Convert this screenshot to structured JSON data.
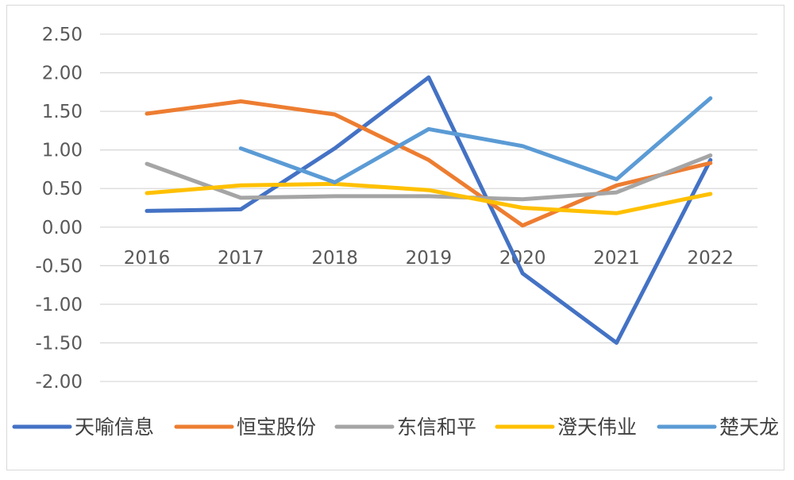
{
  "chart_data": {
    "type": "line",
    "categories": [
      "2016",
      "2017",
      "2018",
      "2019",
      "2020",
      "2021",
      "2022"
    ],
    "ylim": [
      -2.0,
      2.5
    ],
    "yticks": [
      "2.50",
      "2.00",
      "1.50",
      "1.00",
      "0.50",
      "0.00",
      "-0.50",
      "-1.00",
      "-1.50",
      "-2.00"
    ],
    "grid": true,
    "legend_position": "bottom",
    "series": [
      {
        "name": "天喻信息",
        "color": "#4472C4",
        "values": [
          0.21,
          0.23,
          1.02,
          1.94,
          -0.6,
          -1.5,
          0.87
        ]
      },
      {
        "name": "恒宝股份",
        "color": "#ED7D31",
        "values": [
          1.47,
          1.63,
          1.46,
          0.87,
          0.02,
          0.54,
          0.83
        ]
      },
      {
        "name": "东信和平",
        "color": "#A5A5A5",
        "values": [
          0.82,
          0.38,
          0.4,
          0.4,
          0.36,
          0.45,
          0.93
        ]
      },
      {
        "name": "澄天伟业",
        "color": "#FFC000",
        "values": [
          0.44,
          0.54,
          0.56,
          0.48,
          0.25,
          0.18,
          0.43
        ]
      },
      {
        "name": "楚天龙",
        "color": "#5B9BD5",
        "values": [
          null,
          1.02,
          0.58,
          1.27,
          1.05,
          0.62,
          1.67
        ]
      }
    ]
  }
}
